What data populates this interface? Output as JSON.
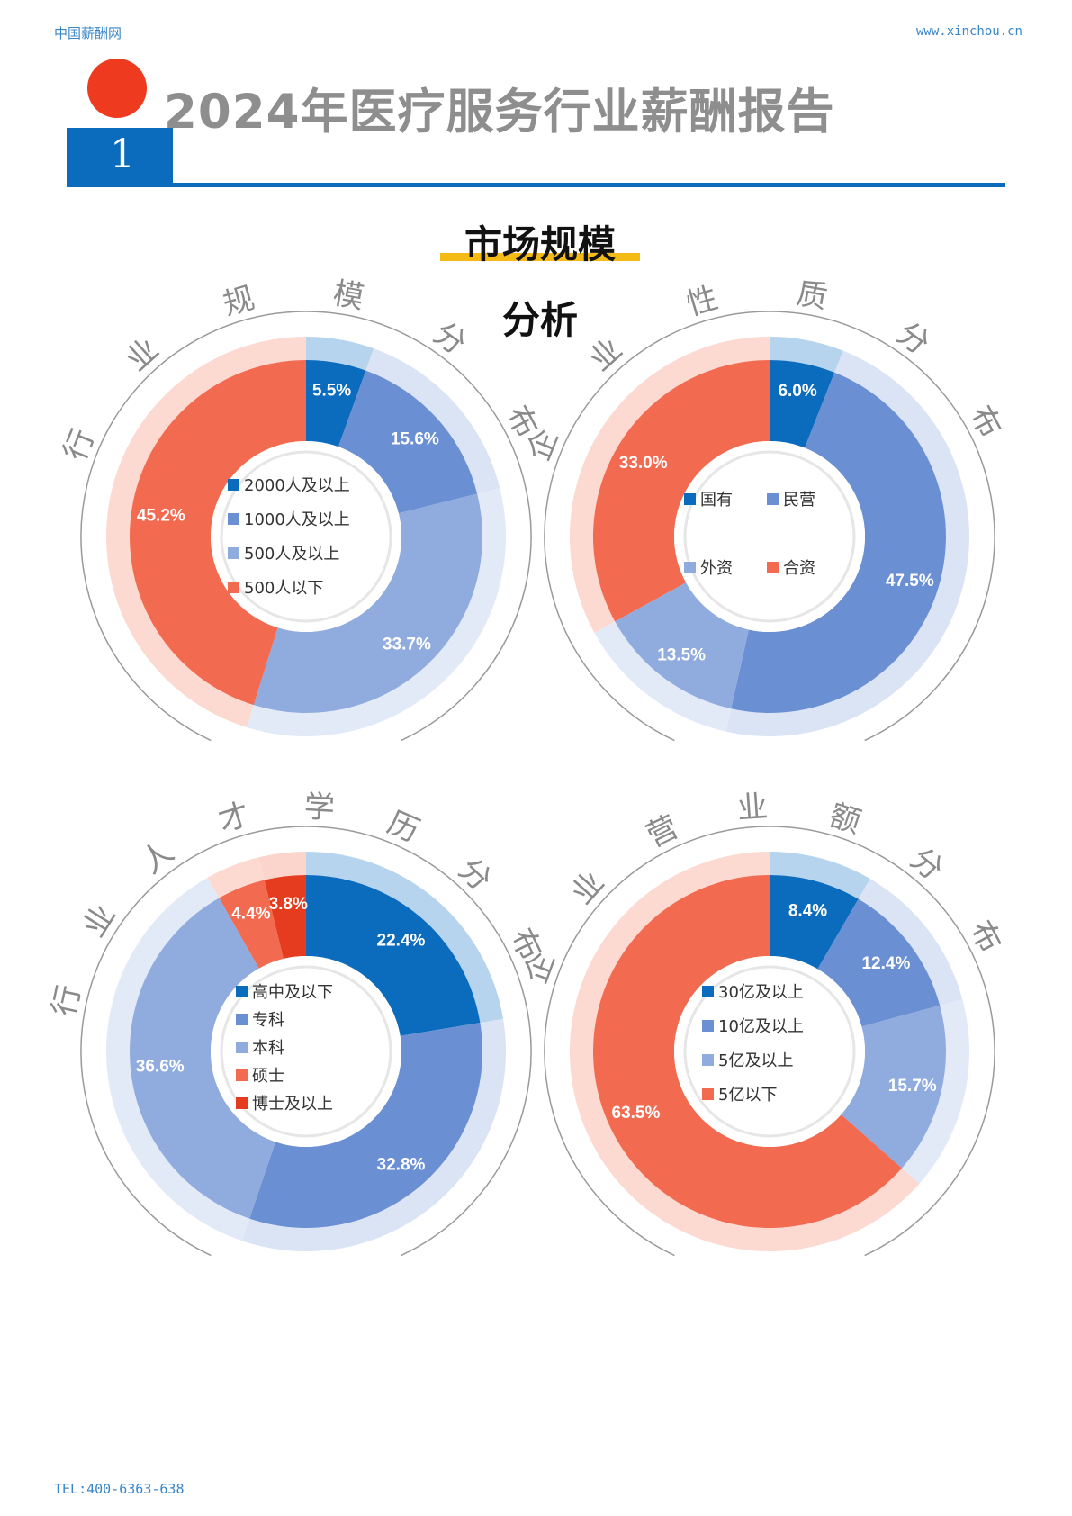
{
  "header": {
    "site_name": "中国薪酬网",
    "site_url": "www.xinchou.cn",
    "report_title": "2024年医疗服务行业薪酬报告",
    "section_number": "1"
  },
  "section": {
    "title": "市场规模",
    "subtitle": "分析"
  },
  "footer": {
    "tel": "TEL:400-6363-638"
  },
  "colors": {
    "accent_blue": "#0b6bbd",
    "accent_red": "#ee3a1f",
    "highlight_yellow": "#f4bb16",
    "series": [
      "#0b6bbd",
      "#6a8fd3",
      "#90abde",
      "#f26a4f",
      "#e53c1f"
    ],
    "series_light": [
      "#b7d4ee",
      "#dbe4f5",
      "#e3eaf7",
      "#fcd9d1",
      "#fbd4cb"
    ]
  },
  "chart_data": [
    {
      "type": "pie",
      "title": "行业规模分布",
      "categories": [
        "2000人及以上",
        "1000人及以上",
        "500人及以上",
        "500人以下"
      ],
      "values": [
        5.5,
        15.6,
        33.7,
        45.2
      ],
      "labels": [
        "5.5%",
        "15.6%",
        "33.7%",
        "45.2%"
      ],
      "legend": "center"
    },
    {
      "type": "pie",
      "title": "企业性质分布",
      "categories": [
        "国有",
        "民营",
        "外资",
        "合资"
      ],
      "values": [
        6.0,
        47.5,
        13.5,
        33.0
      ],
      "labels": [
        "6.0%",
        "47.5%",
        "13.5%",
        "33.0%"
      ],
      "legend": "center"
    },
    {
      "type": "pie",
      "title": "行业人才学历分布",
      "categories": [
        "高中及以下",
        "专科",
        "本科",
        "硕士",
        "博士及以上"
      ],
      "values": [
        22.4,
        32.8,
        36.6,
        4.4,
        3.8
      ],
      "labels": [
        "22.4%",
        "32.8%",
        "36.6%",
        "4.4%",
        "3.8%"
      ],
      "legend": "center"
    },
    {
      "type": "pie",
      "title": "企业营业额分布",
      "categories": [
        "30亿及以上",
        "10亿及以上",
        "5亿及以上",
        "5亿以下"
      ],
      "values": [
        8.4,
        12.4,
        15.7,
        63.5
      ],
      "labels": [
        "8.4%",
        "12.4%",
        "15.7%",
        "63.5%"
      ],
      "legend": "center"
    }
  ]
}
